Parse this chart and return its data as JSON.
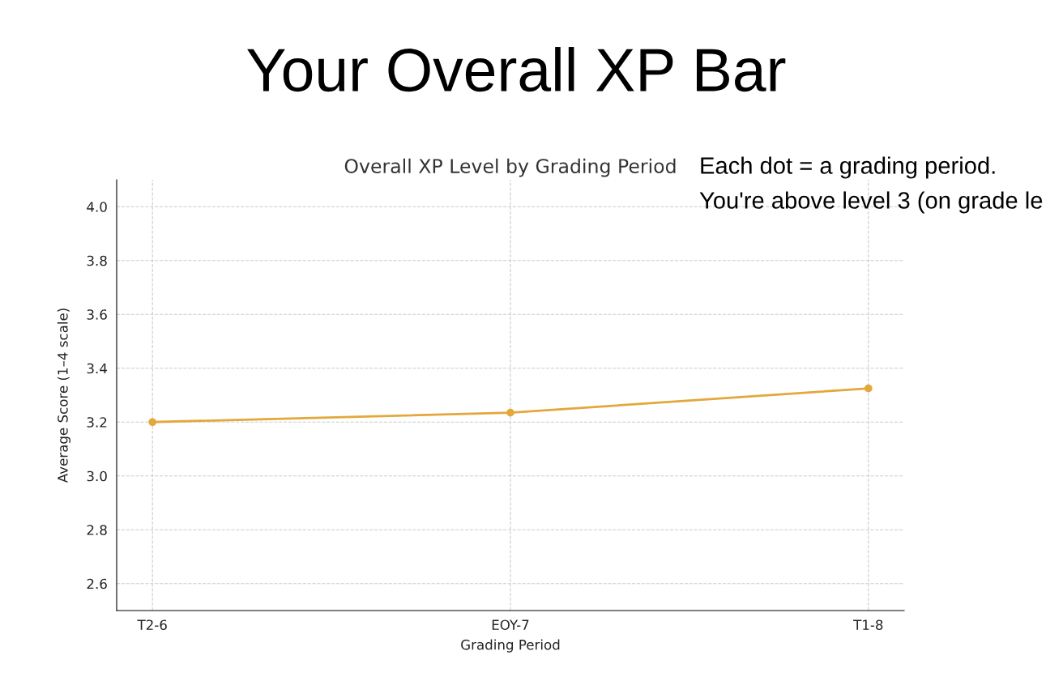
{
  "chart_data": {
    "type": "line",
    "title": "Your Overall XP Bar",
    "subtitle": "Overall XP Level by Grading Period",
    "xlabel": "Grading Period",
    "ylabel": "Average Score (1–4 scale)",
    "categories": [
      "T2-6",
      "EOY-7",
      "T1-8"
    ],
    "series": [
      {
        "color": "#e3a73b",
        "values": [
          3.2,
          3.235,
          3.325
        ]
      }
    ],
    "ylim": [
      2.5,
      4.1
    ],
    "yticks": [
      2.6,
      2.8,
      {
        "value": 3,
        "label": "3.0"
      },
      3.2,
      3.4,
      3.6,
      3.8,
      {
        "value": 4,
        "label": "4.0"
      }
    ],
    "grid": true,
    "marker": "circle",
    "line_style": "solid",
    "annotations": [
      "Each dot = a grading period.",
      "You're above level 3 (on grade le"
    ]
  }
}
